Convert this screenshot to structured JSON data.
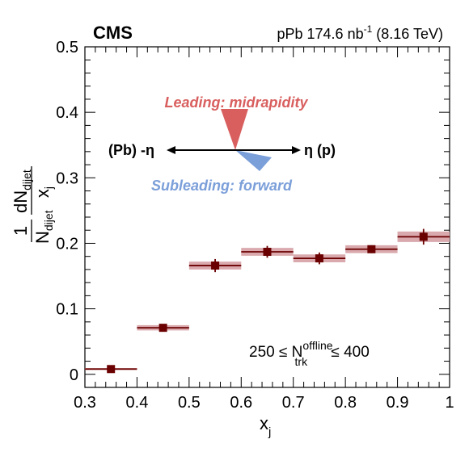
{
  "header": {
    "experiment": "CMS",
    "lumi_prefix": "pPb 174.6 nb",
    "lumi_exp": "-1",
    "lumi_suffix": " (8.16 TeV)"
  },
  "annotation": {
    "leading": "Leading: midrapidity",
    "subleading": "Subleading: forward",
    "left_label": "(Pb) -η",
    "right_label": "η (p)",
    "leading_color": "#d95f5f",
    "subleading_color": "#7b9fd9"
  },
  "selection": {
    "prefix": "250 ≤ N",
    "sup": "offline",
    "sub": "trk",
    "suffix": " ≤ 400"
  },
  "chart_data": {
    "type": "scatter",
    "x_label_main": "x",
    "x_label_sub": "j",
    "y_label": {
      "one": "1",
      "N": "N",
      "N_sub": "dijet",
      "dN": "dN",
      "dN_sub": "dijet",
      "dx": "x",
      "dx_sub": "j"
    },
    "xlim": [
      0.3,
      1.0
    ],
    "ylim": [
      -0.02,
      0.5
    ],
    "x_ticks": [
      "0.3",
      "0.4",
      "0.5",
      "0.6",
      "0.7",
      "0.8",
      "0.9",
      "1"
    ],
    "y_ticks": [
      "0",
      "0.1",
      "0.2",
      "0.3",
      "0.4",
      "0.5"
    ],
    "marker_color": "#6b0000",
    "syst_color": "#d9a9ad",
    "points": [
      {
        "x": 0.35,
        "xlo": 0.3,
        "xhi": 0.4,
        "y": 0.008,
        "stat": 0.002,
        "syst": 0.0015
      },
      {
        "x": 0.45,
        "xlo": 0.4,
        "xhi": 0.5,
        "y": 0.071,
        "stat": 0.004,
        "syst": 0.004
      },
      {
        "x": 0.55,
        "xlo": 0.5,
        "xhi": 0.6,
        "y": 0.166,
        "stat": 0.01,
        "syst": 0.006
      },
      {
        "x": 0.65,
        "xlo": 0.6,
        "xhi": 0.7,
        "y": 0.187,
        "stat": 0.009,
        "syst": 0.006
      },
      {
        "x": 0.75,
        "xlo": 0.7,
        "xhi": 0.8,
        "y": 0.177,
        "stat": 0.009,
        "syst": 0.006
      },
      {
        "x": 0.85,
        "xlo": 0.8,
        "xhi": 0.9,
        "y": 0.191,
        "stat": 0.006,
        "syst": 0.006
      },
      {
        "x": 0.95,
        "xlo": 0.9,
        "xhi": 1.0,
        "y": 0.21,
        "stat": 0.012,
        "syst": 0.008
      }
    ]
  }
}
